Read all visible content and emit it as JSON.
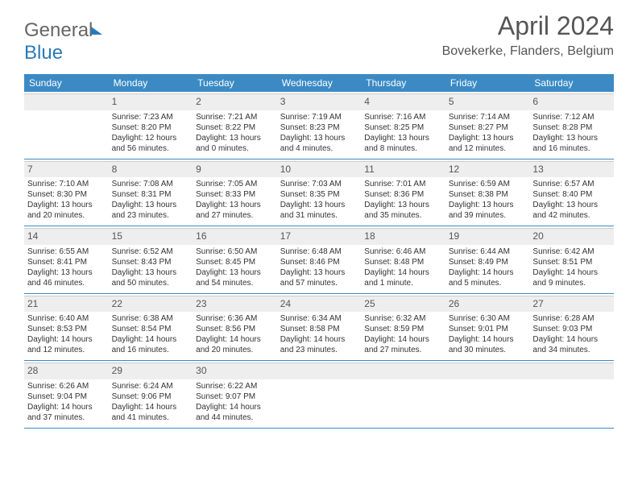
{
  "logo": {
    "part1": "General",
    "part2": "Blue"
  },
  "title": "April 2024",
  "location": "Bovekerke, Flanders, Belgium",
  "day_headers": [
    "Sunday",
    "Monday",
    "Tuesday",
    "Wednesday",
    "Thursday",
    "Friday",
    "Saturday"
  ],
  "colors": {
    "header_bg": "#3b8ac4",
    "header_text": "#ffffff",
    "daynum_bg": "#eeeeee",
    "border": "#3b8ac4",
    "text": "#333333",
    "title_text": "#555555"
  },
  "weeks": [
    [
      {
        "day": "",
        "sunrise": "",
        "sunset": "",
        "daylight1": "",
        "daylight2": ""
      },
      {
        "day": "1",
        "sunrise": "Sunrise: 7:23 AM",
        "sunset": "Sunset: 8:20 PM",
        "daylight1": "Daylight: 12 hours",
        "daylight2": "and 56 minutes."
      },
      {
        "day": "2",
        "sunrise": "Sunrise: 7:21 AM",
        "sunset": "Sunset: 8:22 PM",
        "daylight1": "Daylight: 13 hours",
        "daylight2": "and 0 minutes."
      },
      {
        "day": "3",
        "sunrise": "Sunrise: 7:19 AM",
        "sunset": "Sunset: 8:23 PM",
        "daylight1": "Daylight: 13 hours",
        "daylight2": "and 4 minutes."
      },
      {
        "day": "4",
        "sunrise": "Sunrise: 7:16 AM",
        "sunset": "Sunset: 8:25 PM",
        "daylight1": "Daylight: 13 hours",
        "daylight2": "and 8 minutes."
      },
      {
        "day": "5",
        "sunrise": "Sunrise: 7:14 AM",
        "sunset": "Sunset: 8:27 PM",
        "daylight1": "Daylight: 13 hours",
        "daylight2": "and 12 minutes."
      },
      {
        "day": "6",
        "sunrise": "Sunrise: 7:12 AM",
        "sunset": "Sunset: 8:28 PM",
        "daylight1": "Daylight: 13 hours",
        "daylight2": "and 16 minutes."
      }
    ],
    [
      {
        "day": "7",
        "sunrise": "Sunrise: 7:10 AM",
        "sunset": "Sunset: 8:30 PM",
        "daylight1": "Daylight: 13 hours",
        "daylight2": "and 20 minutes."
      },
      {
        "day": "8",
        "sunrise": "Sunrise: 7:08 AM",
        "sunset": "Sunset: 8:31 PM",
        "daylight1": "Daylight: 13 hours",
        "daylight2": "and 23 minutes."
      },
      {
        "day": "9",
        "sunrise": "Sunrise: 7:05 AM",
        "sunset": "Sunset: 8:33 PM",
        "daylight1": "Daylight: 13 hours",
        "daylight2": "and 27 minutes."
      },
      {
        "day": "10",
        "sunrise": "Sunrise: 7:03 AM",
        "sunset": "Sunset: 8:35 PM",
        "daylight1": "Daylight: 13 hours",
        "daylight2": "and 31 minutes."
      },
      {
        "day": "11",
        "sunrise": "Sunrise: 7:01 AM",
        "sunset": "Sunset: 8:36 PM",
        "daylight1": "Daylight: 13 hours",
        "daylight2": "and 35 minutes."
      },
      {
        "day": "12",
        "sunrise": "Sunrise: 6:59 AM",
        "sunset": "Sunset: 8:38 PM",
        "daylight1": "Daylight: 13 hours",
        "daylight2": "and 39 minutes."
      },
      {
        "day": "13",
        "sunrise": "Sunrise: 6:57 AM",
        "sunset": "Sunset: 8:40 PM",
        "daylight1": "Daylight: 13 hours",
        "daylight2": "and 42 minutes."
      }
    ],
    [
      {
        "day": "14",
        "sunrise": "Sunrise: 6:55 AM",
        "sunset": "Sunset: 8:41 PM",
        "daylight1": "Daylight: 13 hours",
        "daylight2": "and 46 minutes."
      },
      {
        "day": "15",
        "sunrise": "Sunrise: 6:52 AM",
        "sunset": "Sunset: 8:43 PM",
        "daylight1": "Daylight: 13 hours",
        "daylight2": "and 50 minutes."
      },
      {
        "day": "16",
        "sunrise": "Sunrise: 6:50 AM",
        "sunset": "Sunset: 8:45 PM",
        "daylight1": "Daylight: 13 hours",
        "daylight2": "and 54 minutes."
      },
      {
        "day": "17",
        "sunrise": "Sunrise: 6:48 AM",
        "sunset": "Sunset: 8:46 PM",
        "daylight1": "Daylight: 13 hours",
        "daylight2": "and 57 minutes."
      },
      {
        "day": "18",
        "sunrise": "Sunrise: 6:46 AM",
        "sunset": "Sunset: 8:48 PM",
        "daylight1": "Daylight: 14 hours",
        "daylight2": "and 1 minute."
      },
      {
        "day": "19",
        "sunrise": "Sunrise: 6:44 AM",
        "sunset": "Sunset: 8:49 PM",
        "daylight1": "Daylight: 14 hours",
        "daylight2": "and 5 minutes."
      },
      {
        "day": "20",
        "sunrise": "Sunrise: 6:42 AM",
        "sunset": "Sunset: 8:51 PM",
        "daylight1": "Daylight: 14 hours",
        "daylight2": "and 9 minutes."
      }
    ],
    [
      {
        "day": "21",
        "sunrise": "Sunrise: 6:40 AM",
        "sunset": "Sunset: 8:53 PM",
        "daylight1": "Daylight: 14 hours",
        "daylight2": "and 12 minutes."
      },
      {
        "day": "22",
        "sunrise": "Sunrise: 6:38 AM",
        "sunset": "Sunset: 8:54 PM",
        "daylight1": "Daylight: 14 hours",
        "daylight2": "and 16 minutes."
      },
      {
        "day": "23",
        "sunrise": "Sunrise: 6:36 AM",
        "sunset": "Sunset: 8:56 PM",
        "daylight1": "Daylight: 14 hours",
        "daylight2": "and 20 minutes."
      },
      {
        "day": "24",
        "sunrise": "Sunrise: 6:34 AM",
        "sunset": "Sunset: 8:58 PM",
        "daylight1": "Daylight: 14 hours",
        "daylight2": "and 23 minutes."
      },
      {
        "day": "25",
        "sunrise": "Sunrise: 6:32 AM",
        "sunset": "Sunset: 8:59 PM",
        "daylight1": "Daylight: 14 hours",
        "daylight2": "and 27 minutes."
      },
      {
        "day": "26",
        "sunrise": "Sunrise: 6:30 AM",
        "sunset": "Sunset: 9:01 PM",
        "daylight1": "Daylight: 14 hours",
        "daylight2": "and 30 minutes."
      },
      {
        "day": "27",
        "sunrise": "Sunrise: 6:28 AM",
        "sunset": "Sunset: 9:03 PM",
        "daylight1": "Daylight: 14 hours",
        "daylight2": "and 34 minutes."
      }
    ],
    [
      {
        "day": "28",
        "sunrise": "Sunrise: 6:26 AM",
        "sunset": "Sunset: 9:04 PM",
        "daylight1": "Daylight: 14 hours",
        "daylight2": "and 37 minutes."
      },
      {
        "day": "29",
        "sunrise": "Sunrise: 6:24 AM",
        "sunset": "Sunset: 9:06 PM",
        "daylight1": "Daylight: 14 hours",
        "daylight2": "and 41 minutes."
      },
      {
        "day": "30",
        "sunrise": "Sunrise: 6:22 AM",
        "sunset": "Sunset: 9:07 PM",
        "daylight1": "Daylight: 14 hours",
        "daylight2": "and 44 minutes."
      },
      {
        "day": "",
        "sunrise": "",
        "sunset": "",
        "daylight1": "",
        "daylight2": ""
      },
      {
        "day": "",
        "sunrise": "",
        "sunset": "",
        "daylight1": "",
        "daylight2": ""
      },
      {
        "day": "",
        "sunrise": "",
        "sunset": "",
        "daylight1": "",
        "daylight2": ""
      },
      {
        "day": "",
        "sunrise": "",
        "sunset": "",
        "daylight1": "",
        "daylight2": ""
      }
    ]
  ]
}
